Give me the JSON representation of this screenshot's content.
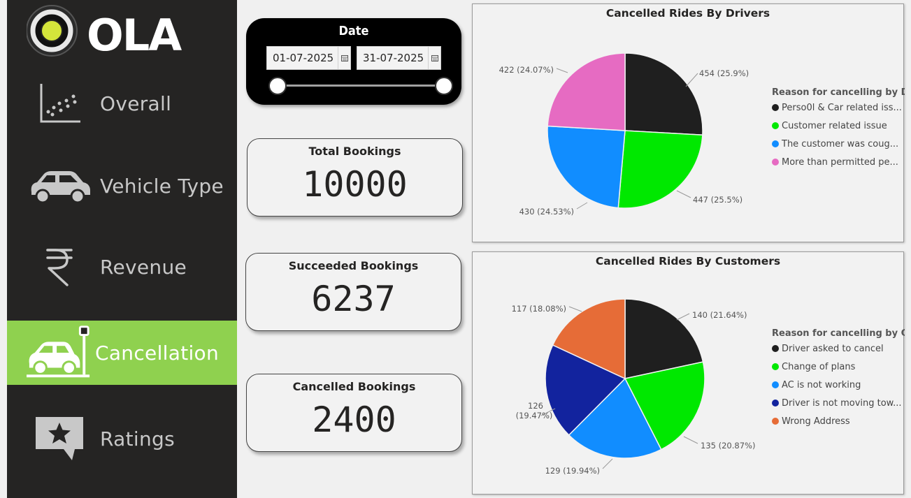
{
  "brand": {
    "name": "OLA"
  },
  "nav": {
    "items": [
      {
        "label": "Overall",
        "icon": "scatter-plot-icon",
        "active": false
      },
      {
        "label": "Vehicle Type",
        "icon": "car-icon",
        "active": false
      },
      {
        "label": "Revenue",
        "icon": "rupee-icon",
        "active": false
      },
      {
        "label": "Cancellation",
        "icon": "car-crash-icon",
        "active": true
      },
      {
        "label": "Ratings",
        "icon": "star-chat-icon",
        "active": false
      }
    ]
  },
  "date_slicer": {
    "title": "Date",
    "start": "01-07-2025",
    "end": "31-07-2025"
  },
  "kpis": {
    "total": {
      "label": "Total Bookings",
      "value": "10000"
    },
    "succeeded": {
      "label": "Succeeded Bookings",
      "value": "6237"
    },
    "cancelled": {
      "label": "Cancelled Bookings",
      "value": "2400"
    }
  },
  "colors": {
    "sidebar": "#252423",
    "active": "#8fd14f",
    "brand": "#d4e53b"
  },
  "chart_data": [
    {
      "type": "pie",
      "title": "Cancelled Rides By Drivers",
      "legend_title": "Reason for cancelling by D...",
      "legend_placement": "right",
      "slices": [
        {
          "label": "Perso0l & Car related iss...",
          "value": 454,
          "data_label": "454 (25.9%)",
          "color": "#1f1f1f"
        },
        {
          "label": "Customer related issue",
          "value": 447,
          "data_label": "447 (25.5%)",
          "color": "#00e800"
        },
        {
          "label": "The customer was coug...",
          "value": 430,
          "data_label": "430 (24.53%)",
          "color": "#118dff"
        },
        {
          "label": "More than permitted pe...",
          "value": 422,
          "data_label": "422 (24.07%)",
          "color": "#e66bc2"
        }
      ]
    },
    {
      "type": "pie",
      "title": "Cancelled Rides By Customers",
      "legend_title": "Reason for cancelling by C...",
      "legend_placement": "right",
      "slices": [
        {
          "label": "Driver asked to cancel",
          "value": 140,
          "data_label": "140 (21.64%)",
          "color": "#1f1f1f"
        },
        {
          "label": "Change of plans",
          "value": 135,
          "data_label": "135 (20.87%)",
          "color": "#00e800"
        },
        {
          "label": "AC is not working",
          "value": 129,
          "data_label": "129 (19.94%)",
          "color": "#118dff"
        },
        {
          "label": "Driver is not moving tow...",
          "value": 126,
          "data_label": "126 (19.47%)",
          "color": "#12239e"
        },
        {
          "label": "Wrong Address",
          "value": 117,
          "data_label": "117 (18.08%)",
          "color": "#e66c37"
        }
      ]
    }
  ]
}
